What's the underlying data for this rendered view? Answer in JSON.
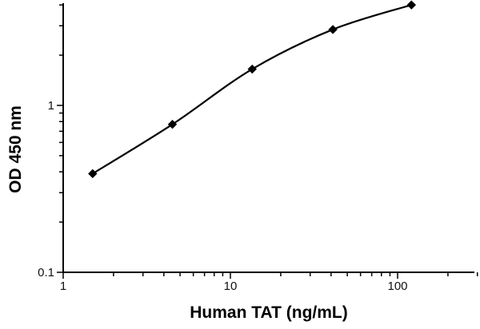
{
  "chart_data": {
    "type": "scatter",
    "title": "",
    "xlabel": "Human TAT (ng/mL)",
    "ylabel": "OD 450 nm",
    "x_scale": "log",
    "y_scale": "log",
    "xlim": [
      1,
      300
    ],
    "ylim": [
      0.1,
      4.2
    ],
    "x_tick_labels": [
      {
        "value": 1,
        "label": "1"
      },
      {
        "value": 10,
        "label": "10"
      },
      {
        "value": 100,
        "label": "100"
      }
    ],
    "y_tick_labels": [
      {
        "value": 0.1,
        "label": "0.1"
      },
      {
        "value": 1,
        "label": "1"
      }
    ],
    "grid": false,
    "legend": "none",
    "marker": "diamond",
    "line_style": "smooth",
    "series": [
      {
        "x": [
          1.5,
          4.5,
          13.5,
          41,
          121
        ],
        "y": [
          0.39,
          0.77,
          1.65,
          2.85,
          4.0
        ]
      }
    ]
  }
}
